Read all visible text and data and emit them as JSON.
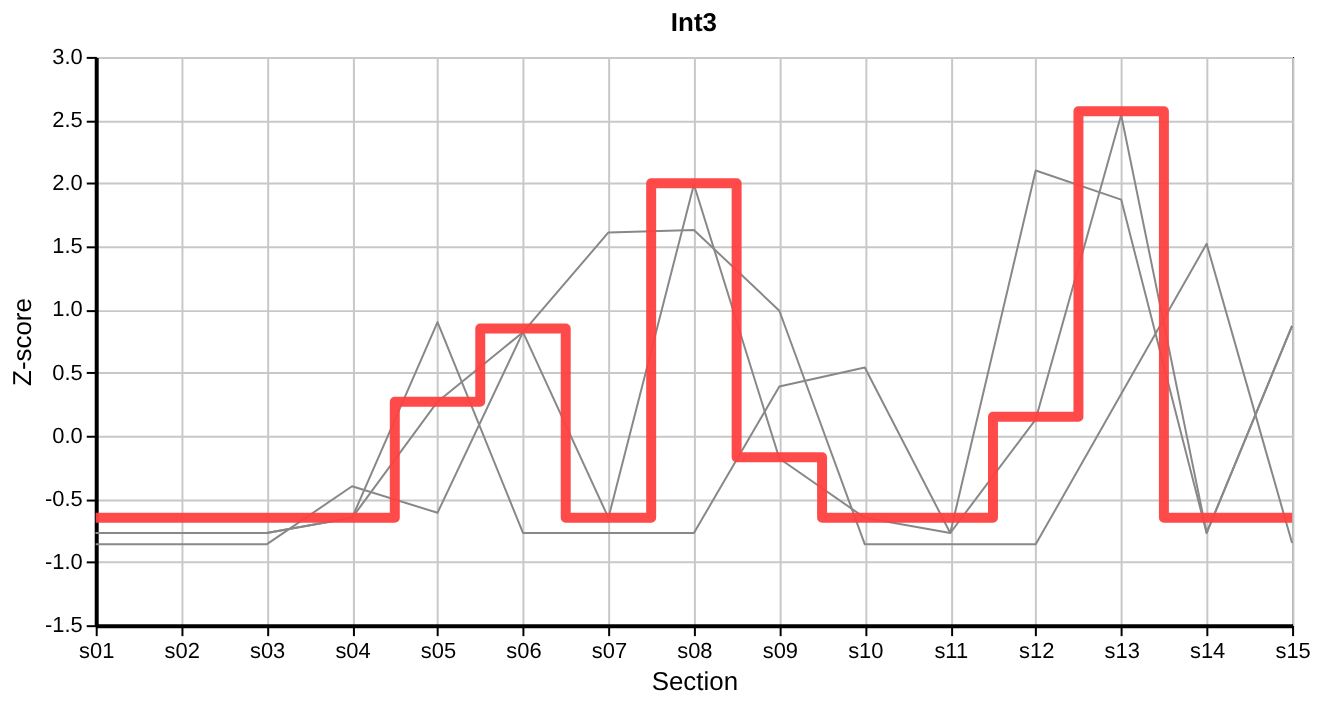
{
  "chart_data": {
    "type": "line",
    "title": "Int3",
    "xlabel": "Section",
    "ylabel": "Z-score",
    "categories": [
      "s01",
      "s02",
      "s03",
      "s04",
      "s05",
      "s06",
      "s07",
      "s08",
      "s09",
      "s10",
      "s11",
      "s12",
      "s13",
      "s14",
      "s15"
    ],
    "series": [
      {
        "color": "#888888",
        "values": [
          -0.86,
          -0.86,
          -0.86,
          -0.4,
          -0.61,
          0.82,
          -0.65,
          1.99,
          -0.18,
          -0.65,
          -0.77,
          2.1,
          1.87,
          -0.77,
          0.87
        ]
      },
      {
        "color": "#888888",
        "values": [
          -0.77,
          -0.77,
          -0.77,
          -0.65,
          0.27,
          0.82,
          1.61,
          1.63,
          0.99,
          -0.86,
          -0.86,
          -0.86,
          0.33,
          1.52,
          -0.85
        ]
      },
      {
        "color": "#888888",
        "values": [
          -0.77,
          -0.77,
          -0.77,
          -0.65,
          0.9,
          -0.77,
          -0.77,
          -0.77,
          0.39,
          0.54,
          -0.77,
          0.13,
          2.54,
          -0.77,
          0.87
        ]
      },
      {
        "type": "step",
        "color": "#ff4040",
        "values": [
          -0.65,
          -0.65,
          -0.65,
          -0.65,
          0.27,
          0.85,
          -0.65,
          2.0,
          -0.17,
          -0.65,
          -0.65,
          0.15,
          2.57,
          -0.65,
          -0.65
        ]
      }
    ],
    "ylim": [
      -1.5,
      3.0
    ],
    "yticks": [
      {
        "value": -1.5,
        "label": "-1.5"
      },
      {
        "value": -1.0,
        "label": "-1.0"
      },
      {
        "value": -0.5,
        "label": "-0.5"
      },
      {
        "value": 0,
        "label": "0.0"
      },
      {
        "value": 0.5,
        "label": "0.5"
      },
      {
        "value": 1.0,
        "label": "1.0"
      },
      {
        "value": 1.5,
        "label": "1.5"
      },
      {
        "value": 2.0,
        "label": "2.0"
      },
      {
        "value": 2.5,
        "label": "2.5"
      },
      {
        "value": 3.0,
        "label": "3.0"
      }
    ],
    "grid": true,
    "legend": false,
    "marker": "none",
    "line_style": "solid"
  }
}
